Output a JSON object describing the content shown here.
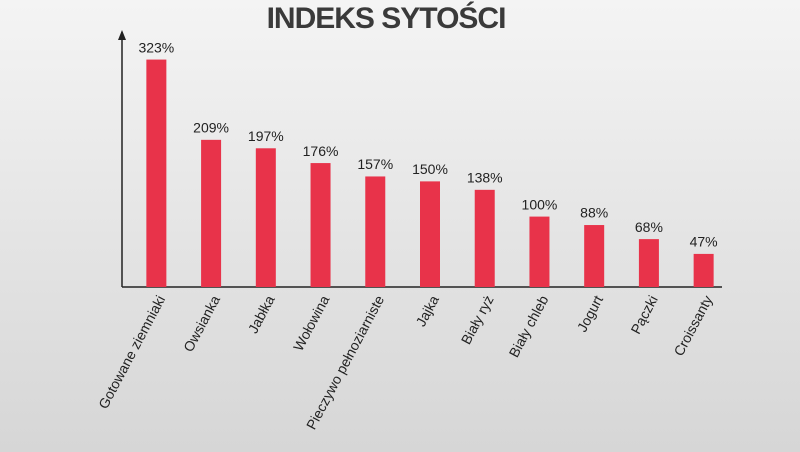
{
  "chart_data": {
    "type": "bar",
    "title": "INDEKS SYTOŚCI",
    "categories": [
      "Gotowane ziemniaki",
      "Owsianka",
      "Jabłka",
      "Wołowina",
      "Pieczywo pełnoziarniste",
      "Jajka",
      "Biały ryż",
      "Biały chleb",
      "Jogurt",
      "Pączki",
      "Croissanty"
    ],
    "values": [
      323,
      209,
      197,
      176,
      157,
      150,
      138,
      100,
      88,
      68,
      47
    ],
    "value_labels": [
      "323%",
      "209%",
      "197%",
      "176%",
      "157%",
      "150%",
      "138%",
      "100%",
      "88%",
      "68%",
      "47%"
    ],
    "color": "#e8334a",
    "ylim": [
      0,
      365
    ]
  }
}
